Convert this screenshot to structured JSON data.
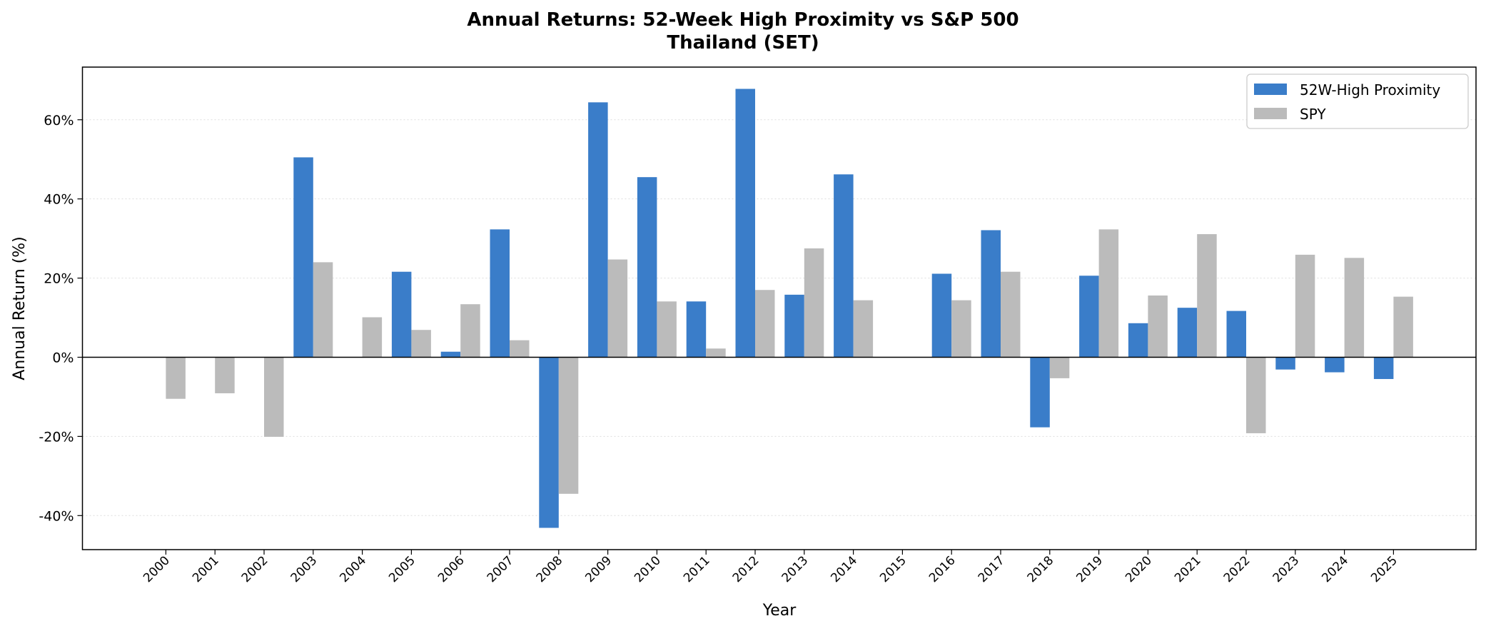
{
  "chart_data": {
    "type": "bar",
    "title": "Annual Returns: 52-Week High Proximity vs S&P 500",
    "subtitle": "Thailand (SET)",
    "xlabel": "Year",
    "ylabel": "Annual Return (%)",
    "ylim": [
      -48.6,
      73.3
    ],
    "yticks": [
      -40,
      -20,
      0,
      20,
      40,
      60
    ],
    "ytick_labels": [
      "-40%",
      "-20%",
      "0%",
      "20%",
      "40%",
      "60%"
    ],
    "grid": "horizontal dotted",
    "legend_position": "top-right",
    "categories": [
      "2000",
      "2001",
      "2002",
      "2003",
      "2004",
      "2005",
      "2006",
      "2007",
      "2008",
      "2009",
      "2010",
      "2011",
      "2012",
      "2013",
      "2014",
      "2015",
      "2016",
      "2017",
      "2018",
      "2019",
      "2020",
      "2021",
      "2022",
      "2023",
      "2024",
      "2025"
    ],
    "series": [
      {
        "name": "52W-High Proximity",
        "color": "#3a7dc9",
        "values": [
          null,
          null,
          null,
          50.5,
          null,
          21.6,
          1.4,
          32.3,
          -43.1,
          64.4,
          45.5,
          14.1,
          67.8,
          15.8,
          46.2,
          null,
          21.1,
          32.1,
          -17.7,
          20.6,
          8.6,
          12.5,
          11.7,
          -3.1,
          -3.8,
          -5.5
        ]
      },
      {
        "name": "SPY",
        "color": "#bbbbbb",
        "values": [
          -10.5,
          -9.1,
          -20.1,
          24.0,
          10.1,
          6.9,
          13.4,
          4.3,
          -34.5,
          24.7,
          14.1,
          2.2,
          17.0,
          27.5,
          14.4,
          null,
          14.4,
          21.6,
          -5.3,
          32.3,
          15.6,
          31.1,
          -19.2,
          25.9,
          25.1,
          15.3
        ]
      }
    ]
  }
}
